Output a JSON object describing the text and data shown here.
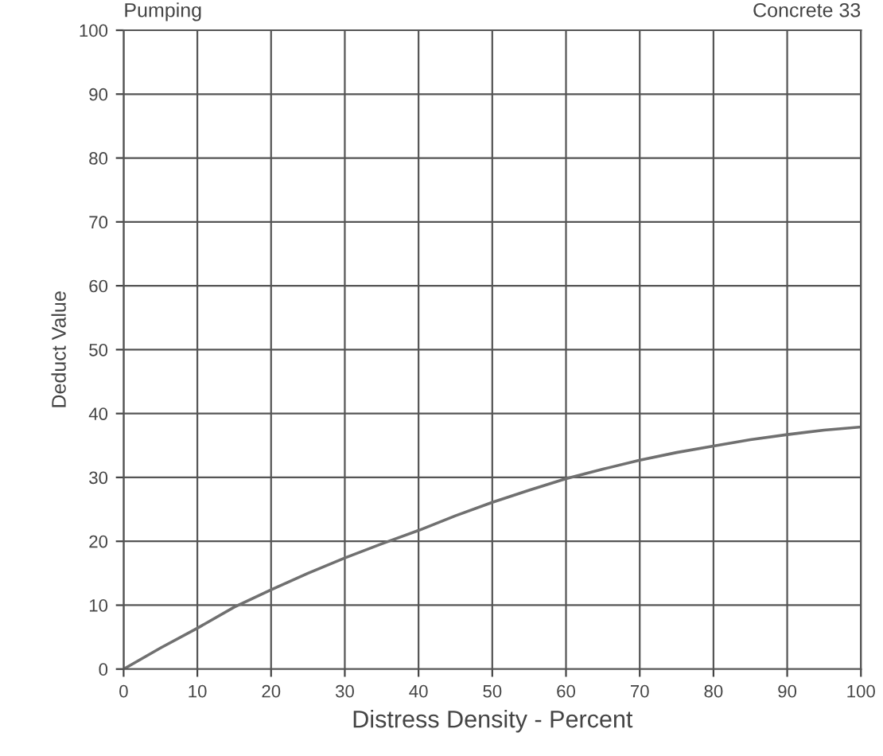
{
  "chart_data": {
    "type": "line",
    "title": "Pumping",
    "subtitle": "Concrete 33",
    "xlabel": "Distress Density - Percent",
    "ylabel": "Deduct Value",
    "x": [
      0,
      5,
      10,
      15,
      20,
      25,
      30,
      35,
      40,
      45,
      50,
      55,
      60,
      65,
      70,
      75,
      80,
      85,
      90,
      95,
      100
    ],
    "series": [
      {
        "color": "#707070",
        "values": [
          0,
          3.3,
          6.4,
          9.7,
          12.4,
          15,
          17.4,
          19.6,
          21.7,
          24,
          26.1,
          28,
          29.8,
          31.3,
          32.7,
          33.9,
          34.9,
          35.9,
          36.7,
          37.4,
          37.9
        ]
      }
    ],
    "xlim": [
      0,
      100
    ],
    "ylim": [
      0,
      100
    ],
    "xticks": [
      0,
      10,
      20,
      30,
      40,
      50,
      60,
      70,
      80,
      90,
      100
    ],
    "yticks": [
      0,
      10,
      20,
      30,
      40,
      50,
      60,
      70,
      80,
      90,
      100
    ],
    "grid": true,
    "marker": "none",
    "line_style": "solid"
  }
}
